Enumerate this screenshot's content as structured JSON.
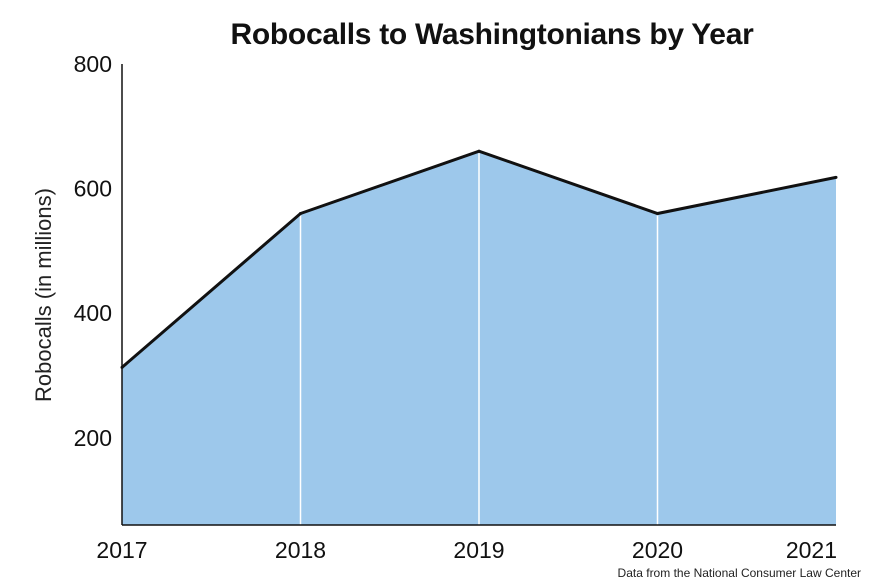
{
  "chart_data": {
    "type": "area",
    "title": "Robocalls to Washingtonians by Year",
    "xlabel": "",
    "ylabel": "Robocalls (in millions)",
    "x": [
      "2017",
      "2018",
      "2019",
      "2020",
      "2021"
    ],
    "values": [
      313,
      560,
      660,
      560,
      618
    ],
    "xlim": [
      "2017",
      "2021"
    ],
    "ylim": [
      60,
      800
    ],
    "y_ticks": [
      200,
      400,
      600,
      800
    ],
    "grid": false,
    "legend": "none",
    "source_note": "Data from the National Consumer Law Center",
    "colors": {
      "fill": "#9dc8eb",
      "line": "#111111",
      "divider": "#ffffff",
      "axis": "#111111"
    }
  }
}
